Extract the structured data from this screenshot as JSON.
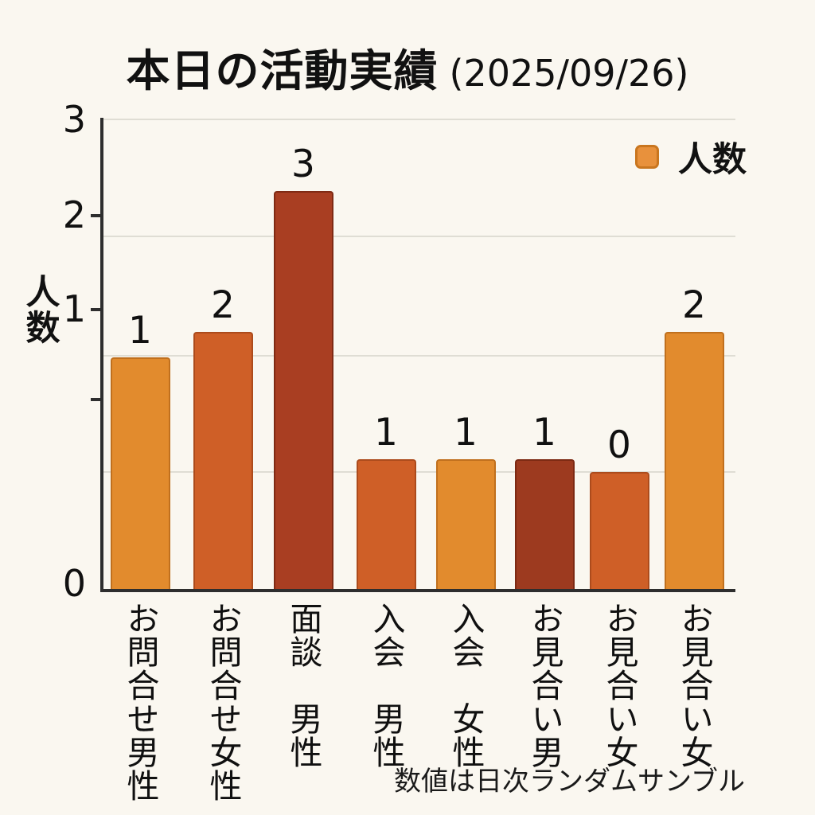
{
  "title": {
    "main": "本日の活動実績",
    "date": "(2025/09/26)"
  },
  "legend": {
    "label": "人数",
    "swatch_color": "#E8913C"
  },
  "y_axis": {
    "title": "人数",
    "tick_labels": [
      "3",
      "2",
      "1",
      "0"
    ]
  },
  "footnote": "数値は日次ランダムサンブル",
  "colors": {
    "background": "#FAF7F0",
    "axis": "#2E2E2E",
    "gridline": "#DFDDD4",
    "text": "#111111"
  },
  "chart_data": {
    "type": "bar",
    "title": "本日の活動実績 (2025/09/26)",
    "xlabel": "",
    "ylabel": "人数",
    "legend_entries": [
      "人数"
    ],
    "legend_position": "top-right",
    "ylim": [
      0,
      3
    ],
    "yticks": [
      0,
      1,
      2,
      3
    ],
    "grid": true,
    "categories": [
      "お問合せ男性",
      "お問合せ女性",
      "面談　男性",
      "入会　男性",
      "入会　女性",
      "お見合い男",
      "お見合い女",
      "お見合い女"
    ],
    "values": [
      1,
      2,
      3,
      1,
      1,
      1,
      0,
      2
    ],
    "bar_colors": [
      "#E28B2D",
      "#CF5F27",
      "#A93E22",
      "#CF5F27",
      "#E28B2D",
      "#9D3A1F",
      "#CF5F27",
      "#E28B2D"
    ],
    "bar_heights_as_drawn": [
      1.48,
      1.64,
      2.54,
      0.83,
      0.83,
      0.83,
      0.75,
      1.64
    ],
    "annotation": "数値は日次ランダムサンブル"
  }
}
